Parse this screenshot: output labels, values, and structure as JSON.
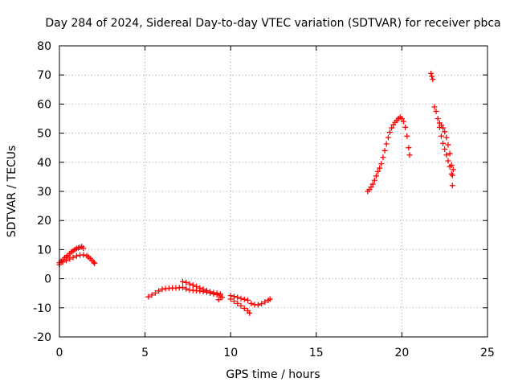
{
  "chart_data": {
    "type": "scatter",
    "title": "Day 284 of 2024, Sidereal Day-to-day VTEC variation (SDTVAR) for receiver pbca",
    "xlabel": "GPS time / hours",
    "ylabel": "SDTVAR / TECUs",
    "xlim": [
      0,
      25
    ],
    "ylim": [
      -20,
      80
    ],
    "x_ticks": [
      0,
      5,
      10,
      15,
      20,
      25
    ],
    "y_ticks": [
      -20,
      -10,
      0,
      10,
      20,
      30,
      40,
      50,
      60,
      70,
      80
    ],
    "grid": true,
    "marker": "+",
    "color": "#ff0000",
    "series": [
      {
        "name": "segment-1",
        "points": [
          [
            0.0,
            4.8
          ],
          [
            0.1,
            6.0
          ],
          [
            0.2,
            6.5
          ],
          [
            0.3,
            7.2
          ],
          [
            0.4,
            7.5
          ],
          [
            0.5,
            8.0
          ],
          [
            0.6,
            8.6
          ],
          [
            0.7,
            9.2
          ],
          [
            0.8,
            9.6
          ],
          [
            0.9,
            10.0
          ],
          [
            1.0,
            10.4
          ],
          [
            1.1,
            10.6
          ],
          [
            1.2,
            10.8
          ],
          [
            1.3,
            11.0
          ],
          [
            1.4,
            10.5
          ],
          [
            0.0,
            5.5
          ],
          [
            0.2,
            5.8
          ],
          [
            0.4,
            6.3
          ],
          [
            0.6,
            6.8
          ],
          [
            0.8,
            7.3
          ],
          [
            1.0,
            7.8
          ],
          [
            1.2,
            8.1
          ],
          [
            1.4,
            8.2
          ],
          [
            1.6,
            7.9
          ],
          [
            1.7,
            7.4
          ],
          [
            1.8,
            6.9
          ],
          [
            1.9,
            6.3
          ],
          [
            2.0,
            5.7
          ],
          [
            2.05,
            5.3
          ]
        ]
      },
      {
        "name": "segment-2",
        "points": [
          [
            5.2,
            -6.2
          ],
          [
            5.4,
            -5.6
          ],
          [
            5.6,
            -4.9
          ],
          [
            5.8,
            -4.2
          ],
          [
            6.0,
            -3.6
          ],
          [
            6.2,
            -3.4
          ],
          [
            6.4,
            -3.3
          ],
          [
            6.6,
            -3.2
          ],
          [
            6.8,
            -3.2
          ],
          [
            7.0,
            -3.1
          ],
          [
            7.2,
            -3.0
          ],
          [
            7.2,
            -1.0
          ],
          [
            7.4,
            -1.3
          ],
          [
            7.6,
            -1.8
          ],
          [
            7.8,
            -2.2
          ],
          [
            8.0,
            -2.7
          ],
          [
            8.2,
            -3.2
          ],
          [
            8.4,
            -3.6
          ],
          [
            8.6,
            -4.1
          ],
          [
            8.8,
            -4.5
          ],
          [
            9.0,
            -4.8
          ],
          [
            9.2,
            -5.0
          ],
          [
            9.4,
            -5.3
          ],
          [
            7.4,
            -3.5
          ],
          [
            7.6,
            -3.9
          ],
          [
            7.8,
            -4.0
          ],
          [
            8.0,
            -4.1
          ],
          [
            8.2,
            -4.2
          ],
          [
            8.4,
            -4.4
          ],
          [
            8.6,
            -4.6
          ],
          [
            8.8,
            -4.9
          ],
          [
            9.0,
            -5.2
          ],
          [
            9.2,
            -5.5
          ],
          [
            9.4,
            -5.9
          ],
          [
            9.3,
            -7.2
          ],
          [
            9.5,
            -6.4
          ],
          [
            10.0,
            -5.8
          ],
          [
            10.2,
            -6.1
          ],
          [
            10.4,
            -6.4
          ],
          [
            10.6,
            -6.8
          ],
          [
            10.8,
            -7.1
          ],
          [
            11.0,
            -7.4
          ],
          [
            10.0,
            -7.0
          ],
          [
            10.2,
            -7.7
          ],
          [
            10.4,
            -8.5
          ],
          [
            10.6,
            -9.3
          ],
          [
            10.8,
            -10.2
          ],
          [
            11.0,
            -11.0
          ],
          [
            11.1,
            -11.8
          ],
          [
            11.2,
            -8.5
          ],
          [
            11.4,
            -8.9
          ],
          [
            11.6,
            -9.0
          ],
          [
            11.8,
            -8.6
          ],
          [
            12.0,
            -8.0
          ],
          [
            12.2,
            -7.4
          ],
          [
            12.3,
            -7.0
          ]
        ]
      },
      {
        "name": "segment-3",
        "points": [
          [
            18.0,
            30.0
          ],
          [
            18.1,
            30.6
          ],
          [
            18.2,
            31.5
          ],
          [
            18.3,
            32.5
          ],
          [
            18.4,
            33.8
          ],
          [
            18.5,
            35.3
          ],
          [
            18.6,
            36.8
          ],
          [
            18.7,
            38.0
          ],
          [
            18.8,
            39.5
          ],
          [
            18.9,
            41.7
          ],
          [
            19.0,
            44.0
          ],
          [
            19.1,
            46.3
          ],
          [
            19.2,
            48.5
          ],
          [
            19.3,
            50.3
          ],
          [
            19.4,
            51.8
          ],
          [
            19.5,
            52.9
          ],
          [
            19.6,
            53.7
          ],
          [
            19.7,
            54.4
          ],
          [
            19.8,
            55.0
          ],
          [
            19.9,
            55.5
          ],
          [
            20.0,
            55.0
          ],
          [
            20.1,
            54.0
          ],
          [
            20.2,
            52.0
          ],
          [
            20.3,
            49.0
          ],
          [
            20.4,
            45.0
          ],
          [
            20.45,
            42.5
          ]
        ]
      },
      {
        "name": "segment-4",
        "points": [
          [
            21.7,
            70.5
          ],
          [
            21.75,
            69.5
          ],
          [
            21.8,
            68.5
          ],
          [
            21.9,
            59.0
          ],
          [
            22.0,
            57.5
          ],
          [
            22.1,
            55.0
          ],
          [
            22.2,
            52.0
          ],
          [
            22.3,
            49.0
          ],
          [
            22.4,
            46.5
          ],
          [
            22.5,
            44.5
          ],
          [
            22.6,
            42.5
          ],
          [
            22.7,
            40.5
          ],
          [
            22.8,
            38.5
          ],
          [
            22.9,
            36.0
          ],
          [
            22.95,
            32.0
          ],
          [
            22.2,
            53.5
          ],
          [
            22.3,
            52.8
          ],
          [
            22.4,
            51.8
          ],
          [
            22.5,
            50.5
          ],
          [
            22.6,
            48.5
          ],
          [
            22.7,
            46.0
          ],
          [
            22.8,
            43.0
          ],
          [
            22.9,
            39.0
          ],
          [
            22.95,
            35.5
          ],
          [
            23.0,
            37.5
          ]
        ]
      }
    ]
  }
}
